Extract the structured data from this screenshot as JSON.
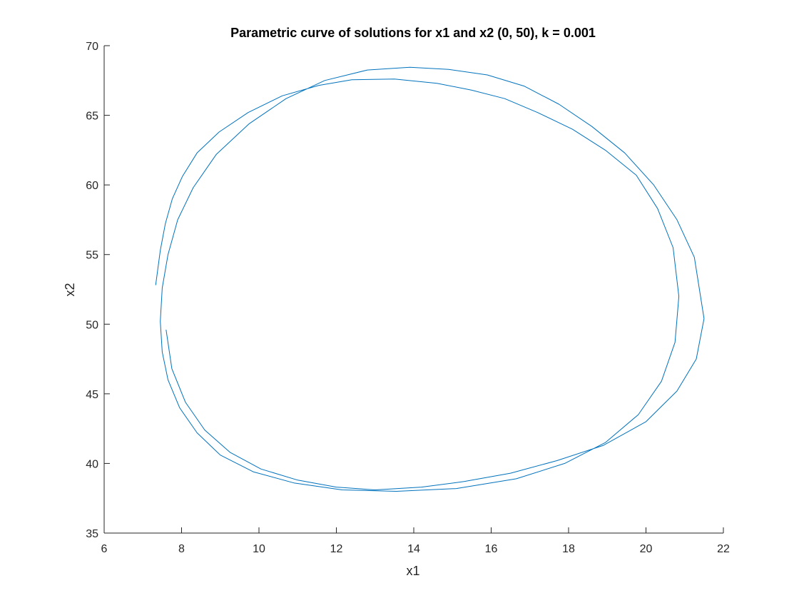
{
  "chart_data": {
    "type": "line",
    "title": "Parametric curve of solutions for x1 and x2 (0, 50), k = 0.001",
    "xlabel": "x1",
    "ylabel": "x2",
    "xlim": [
      6,
      22
    ],
    "ylim": [
      35,
      70
    ],
    "xticks": [
      "6",
      "8",
      "10",
      "12",
      "14",
      "16",
      "18",
      "20",
      "22"
    ],
    "yticks": [
      "35",
      "40",
      "45",
      "50",
      "55",
      "60",
      "65",
      "70"
    ],
    "grid": false,
    "legend": "none",
    "color": "#0072BD",
    "series": [
      {
        "x": [
          7.33,
          7.45,
          7.58,
          7.76,
          8.02,
          8.4,
          8.97,
          9.72,
          10.6,
          11.55,
          12.4,
          13.5,
          14.6,
          15.5,
          16.35,
          17.2,
          18.1,
          18.95,
          19.75,
          20.3,
          20.7,
          20.85,
          20.75,
          20.4,
          19.8,
          18.95,
          17.9,
          16.65,
          15.1,
          13.55,
          12.15,
          10.9,
          9.85,
          9.0,
          8.4,
          7.95,
          7.65,
          7.5,
          7.45,
          7.5,
          7.65,
          7.9,
          8.3,
          8.9,
          9.75,
          10.7,
          11.7,
          12.8,
          13.9,
          14.9,
          15.9,
          16.85,
          17.75,
          18.6,
          19.45,
          20.2,
          20.8,
          21.25,
          21.5,
          21.3,
          20.8,
          20.0,
          18.9,
          17.7,
          16.5,
          15.3,
          14.2,
          13.0,
          12.0,
          11.0,
          10.05,
          9.25,
          8.6,
          8.1,
          7.75,
          7.6
        ],
        "y": [
          52.8,
          55.3,
          57.2,
          59.0,
          60.6,
          62.3,
          63.8,
          65.2,
          66.4,
          67.15,
          67.55,
          67.6,
          67.3,
          66.8,
          66.2,
          65.2,
          64.0,
          62.5,
          60.7,
          58.3,
          55.5,
          52.0,
          48.7,
          45.9,
          43.5,
          41.5,
          40.0,
          38.9,
          38.2,
          38.0,
          38.1,
          38.6,
          39.4,
          40.6,
          42.2,
          44.0,
          46.0,
          48.0,
          50.2,
          52.6,
          55.0,
          57.5,
          59.8,
          62.2,
          64.4,
          66.2,
          67.5,
          68.25,
          68.45,
          68.3,
          67.9,
          67.1,
          65.8,
          64.2,
          62.3,
          60.0,
          57.5,
          54.8,
          50.4,
          47.5,
          45.2,
          43.0,
          41.3,
          40.2,
          39.3,
          38.7,
          38.3,
          38.1,
          38.3,
          38.8,
          39.6,
          40.8,
          42.4,
          44.4,
          46.8,
          49.6
        ]
      }
    ]
  }
}
